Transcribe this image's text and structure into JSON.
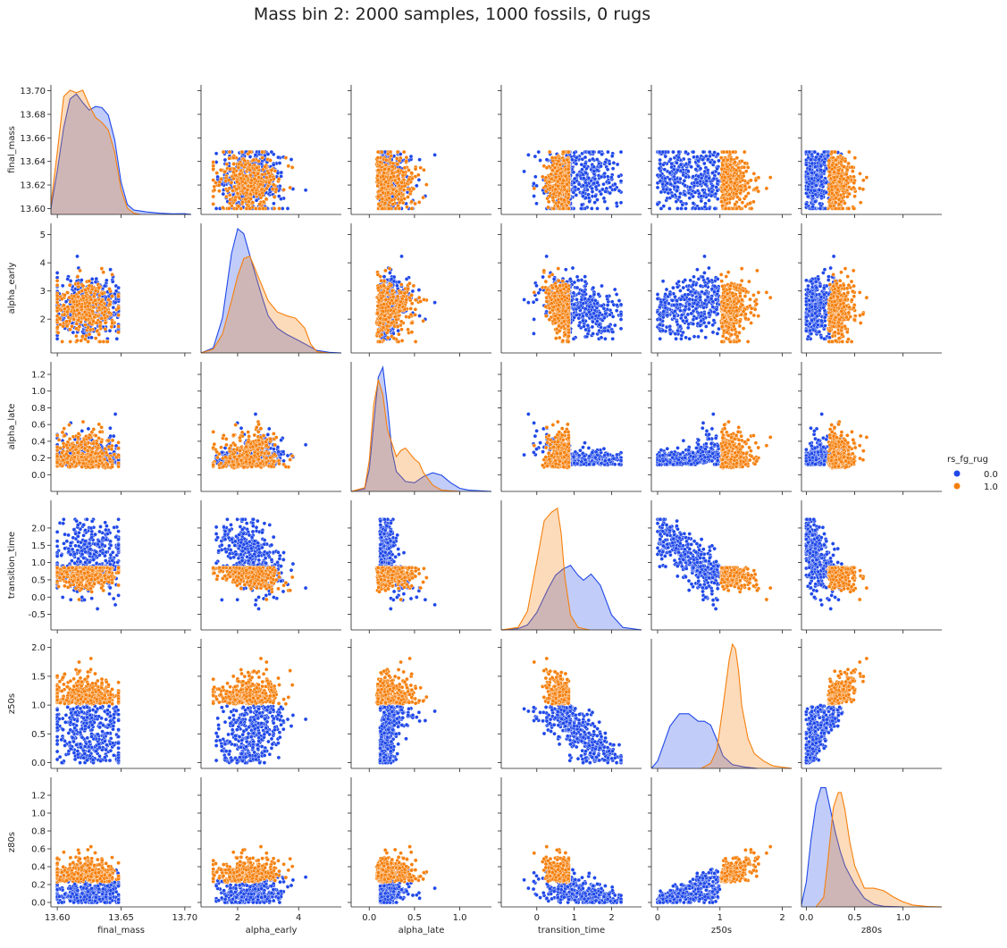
{
  "chart_data": {
    "type": "scatter",
    "title": "Mass bin 2: 2000 samples, 1000 fossils, 0 rugs",
    "variables": [
      "final_mass",
      "alpha_early",
      "alpha_late",
      "transition_time",
      "z50s",
      "z80s"
    ],
    "diagonal": "kde",
    "legend": {
      "title": "rs_fg_rug",
      "placement": "right",
      "entries": [
        {
          "label": "0.0",
          "color": "#1f48e8"
        },
        {
          "label": "1.0",
          "color": "#f57f0b"
        }
      ]
    },
    "axes": {
      "final_mass": {
        "range": [
          13.595,
          13.705
        ],
        "ticks": [
          13.6,
          13.65,
          13.7
        ],
        "tick_labels": [
          "13.60",
          "13.65",
          "13.70"
        ],
        "row_ticks": [
          13.6,
          13.62,
          13.64,
          13.66,
          13.68,
          13.7
        ],
        "row_tick_labels": [
          "13.60",
          "13.62",
          "13.64",
          "13.66",
          "13.68",
          "13.70"
        ]
      },
      "alpha_early": {
        "range": [
          0.8,
          5.4
        ],
        "ticks": [
          2,
          4
        ],
        "tick_labels": [
          "2",
          "4"
        ],
        "row_ticks": [
          2,
          3,
          4,
          5
        ],
        "row_tick_labels": [
          "2",
          "3",
          "4",
          "5"
        ]
      },
      "alpha_late": {
        "range": [
          -0.2,
          1.35
        ],
        "ticks": [
          0.0,
          0.5,
          1.0
        ],
        "tick_labels": [
          "0.0",
          "0.5",
          "1.0"
        ],
        "row_ticks": [
          0.0,
          0.2,
          0.4,
          0.6,
          0.8,
          1.0,
          1.2
        ],
        "row_tick_labels": [
          "0.0",
          "0.2",
          "0.4",
          "0.6",
          "0.8",
          "1.0",
          "1.2"
        ]
      },
      "transition_time": {
        "range": [
          -0.95,
          2.8
        ],
        "ticks": [
          0,
          1,
          2
        ],
        "tick_labels": [
          "0",
          "1",
          "2"
        ],
        "row_ticks": [
          -0.5,
          0.0,
          0.5,
          1.0,
          1.5,
          2.0
        ],
        "row_tick_labels": [
          "-0.5",
          "0.0",
          "0.5",
          "1.0",
          "1.5",
          "2.0"
        ]
      },
      "z50s": {
        "range": [
          -0.1,
          2.15
        ],
        "ticks": [
          0,
          1,
          2
        ],
        "tick_labels": [
          "0",
          "1",
          "2"
        ],
        "row_ticks": [
          0.0,
          0.5,
          1.0,
          1.5,
          2.0
        ],
        "row_tick_labels": [
          "0.0",
          "0.5",
          "1.0",
          "1.5",
          "2.0"
        ]
      },
      "z80s": {
        "range": [
          -0.05,
          1.4
        ],
        "ticks": [
          0.0,
          0.5,
          1.0
        ],
        "tick_labels": [
          "0.0",
          "0.5",
          "1.0"
        ],
        "row_ticks": [
          0.0,
          0.2,
          0.4,
          0.6,
          0.8,
          1.0,
          1.2
        ],
        "row_tick_labels": [
          "0.0",
          "0.2",
          "0.4",
          "0.6",
          "0.8",
          "1.0",
          "1.2"
        ]
      }
    },
    "groups": {
      "0.0": {
        "final_mass": {
          "mean": 13.625,
          "sd": 0.0145,
          "min": 13.6,
          "max": 13.7
        },
        "alpha_early": {
          "mean": 2.3,
          "sd": 0.5,
          "min": 1.3,
          "max": 5.3
        },
        "alpha_late": {
          "mean": 0.25,
          "sd": 0.2,
          "min": 0.05,
          "max": 1.15
        },
        "transition_time": {
          "mean": 0.95,
          "sd": 0.5,
          "min": -0.4,
          "max": 2.25
        },
        "z50s": {
          "mean": 0.55,
          "sd": 0.27,
          "min": 0.0,
          "max": 1.0
        },
        "z80s": {
          "mean": 0.22,
          "sd": 0.12,
          "min": 0.0,
          "max": 0.6
        }
      },
      "1.0": {
        "final_mass": {
          "mean": 13.622,
          "sd": 0.012,
          "min": 13.6,
          "max": 13.65
        },
        "alpha_early": {
          "mean": 2.7,
          "sd": 0.75,
          "min": 1.2,
          "max": 4.3
        },
        "alpha_late": {
          "mean": 0.27,
          "sd": 0.16,
          "min": 0.05,
          "max": 0.8
        },
        "transition_time": {
          "mean": 0.35,
          "sd": 0.28,
          "min": -0.35,
          "max": 0.85
        },
        "z50s": {
          "mean": 1.25,
          "sd": 0.17,
          "min": 1.0,
          "max": 2.0
        },
        "z80s": {
          "mean": 0.42,
          "sd": 0.2,
          "min": 0.18,
          "max": 1.2
        }
      }
    },
    "kde": {
      "final_mass": {
        "0.0": {
          "x": [
            13.595,
            13.6,
            13.605,
            13.61,
            13.615,
            13.62,
            13.625,
            13.63,
            13.635,
            13.64,
            13.645,
            13.65,
            13.655,
            13.66,
            13.67,
            13.68,
            13.69,
            13.7,
            13.705
          ],
          "y": [
            0.05,
            0.35,
            0.7,
            0.93,
            0.97,
            0.9,
            0.84,
            0.87,
            0.86,
            0.8,
            0.6,
            0.26,
            0.08,
            0.035,
            0.02,
            0.01,
            0.005,
            0.006,
            0.0
          ]
        },
        "1.0": {
          "x": [
            13.595,
            13.6,
            13.605,
            13.61,
            13.615,
            13.62,
            13.625,
            13.63,
            13.635,
            13.64,
            13.645,
            13.65,
            13.655,
            13.66,
            13.665
          ],
          "y": [
            0.08,
            0.5,
            0.95,
            1.0,
            0.98,
            1.0,
            0.88,
            0.78,
            0.74,
            0.68,
            0.5,
            0.2,
            0.05,
            0.01,
            0.0
          ]
        }
      },
      "alpha_early": {
        "0.0": {
          "x": [
            0.8,
            1.2,
            1.5,
            1.8,
            2.0,
            2.2,
            2.5,
            2.8,
            3.0,
            3.3,
            3.6,
            4.0,
            4.3,
            4.6,
            5.0,
            5.4
          ],
          "y": [
            0.0,
            0.04,
            0.28,
            0.8,
            1.0,
            0.96,
            0.7,
            0.45,
            0.3,
            0.2,
            0.15,
            0.1,
            0.06,
            0.02,
            0.005,
            0.0
          ]
        },
        "1.0": {
          "x": [
            0.8,
            1.2,
            1.5,
            1.8,
            2.0,
            2.2,
            2.4,
            2.7,
            3.0,
            3.3,
            3.6,
            3.9,
            4.2,
            4.4,
            4.6,
            5.0
          ],
          "y": [
            0.0,
            0.03,
            0.15,
            0.42,
            0.62,
            0.76,
            0.78,
            0.6,
            0.42,
            0.33,
            0.3,
            0.28,
            0.2,
            0.07,
            0.01,
            0.0
          ]
        }
      },
      "alpha_late": {
        "0.0": {
          "x": [
            -0.2,
            -0.05,
            0.0,
            0.05,
            0.1,
            0.15,
            0.2,
            0.25,
            0.3,
            0.4,
            0.5,
            0.6,
            0.7,
            0.8,
            0.9,
            1.0,
            1.1,
            1.35
          ],
          "y": [
            0.0,
            0.02,
            0.18,
            0.55,
            0.92,
            1.0,
            0.7,
            0.33,
            0.16,
            0.08,
            0.07,
            0.12,
            0.15,
            0.13,
            0.07,
            0.025,
            0.01,
            0.0
          ]
        },
        "1.0": {
          "x": [
            -0.2,
            -0.05,
            0.0,
            0.05,
            0.1,
            0.15,
            0.2,
            0.3,
            0.35,
            0.4,
            0.5,
            0.55,
            0.6,
            0.7,
            0.8,
            1.0
          ],
          "y": [
            0.0,
            0.03,
            0.25,
            0.7,
            0.9,
            0.78,
            0.5,
            0.28,
            0.33,
            0.35,
            0.26,
            0.23,
            0.15,
            0.05,
            0.01,
            0.0
          ]
        }
      },
      "transition_time": {
        "0.0": {
          "x": [
            -0.95,
            -0.5,
            -0.25,
            0.0,
            0.3,
            0.5,
            0.7,
            0.9,
            1.1,
            1.25,
            1.45,
            1.7,
            2.0,
            2.3,
            2.8
          ],
          "y": [
            0.0,
            0.01,
            0.04,
            0.14,
            0.33,
            0.44,
            0.49,
            0.52,
            0.44,
            0.4,
            0.45,
            0.36,
            0.12,
            0.02,
            0.0
          ]
        },
        "1.0": {
          "x": [
            -0.95,
            -0.5,
            -0.25,
            0.0,
            0.2,
            0.4,
            0.55,
            0.65,
            0.75,
            0.9,
            1.1,
            1.4
          ],
          "y": [
            0.0,
            0.02,
            0.15,
            0.55,
            0.88,
            0.95,
            0.98,
            0.78,
            0.42,
            0.12,
            0.02,
            0.0
          ]
        }
      },
      "z50s": {
        "0.0": {
          "x": [
            -0.1,
            0.0,
            0.1,
            0.2,
            0.35,
            0.5,
            0.65,
            0.75,
            0.85,
            0.95,
            1.05,
            1.2,
            1.4,
            1.6
          ],
          "y": [
            0.0,
            0.06,
            0.2,
            0.34,
            0.44,
            0.44,
            0.38,
            0.38,
            0.35,
            0.23,
            0.1,
            0.03,
            0.01,
            0.0
          ]
        },
        "1.0": {
          "x": [
            0.7,
            0.85,
            0.95,
            1.05,
            1.15,
            1.2,
            1.25,
            1.3,
            1.35,
            1.45,
            1.55,
            1.7,
            1.85,
            2.15
          ],
          "y": [
            0.0,
            0.04,
            0.15,
            0.5,
            0.88,
            1.0,
            0.96,
            0.78,
            0.5,
            0.24,
            0.12,
            0.06,
            0.02,
            0.0
          ]
        }
      },
      "z80s": {
        "0.0": {
          "x": [
            -0.05,
            0.0,
            0.05,
            0.1,
            0.15,
            0.2,
            0.25,
            0.3,
            0.35,
            0.4,
            0.5,
            0.6,
            0.7,
            0.8,
            0.9,
            1.0
          ],
          "y": [
            0.02,
            0.2,
            0.55,
            0.82,
            0.96,
            0.96,
            0.78,
            0.6,
            0.45,
            0.33,
            0.18,
            0.07,
            0.02,
            0.005,
            0.002,
            0.0
          ]
        },
        "1.0": {
          "x": [
            0.1,
            0.18,
            0.22,
            0.28,
            0.33,
            0.36,
            0.4,
            0.45,
            0.5,
            0.6,
            0.7,
            0.8,
            0.9,
            1.0,
            1.1,
            1.25,
            1.4
          ],
          "y": [
            0.0,
            0.08,
            0.35,
            0.8,
            0.92,
            0.92,
            0.78,
            0.52,
            0.33,
            0.15,
            0.15,
            0.13,
            0.08,
            0.04,
            0.015,
            0.003,
            0.0
          ]
        }
      }
    }
  }
}
